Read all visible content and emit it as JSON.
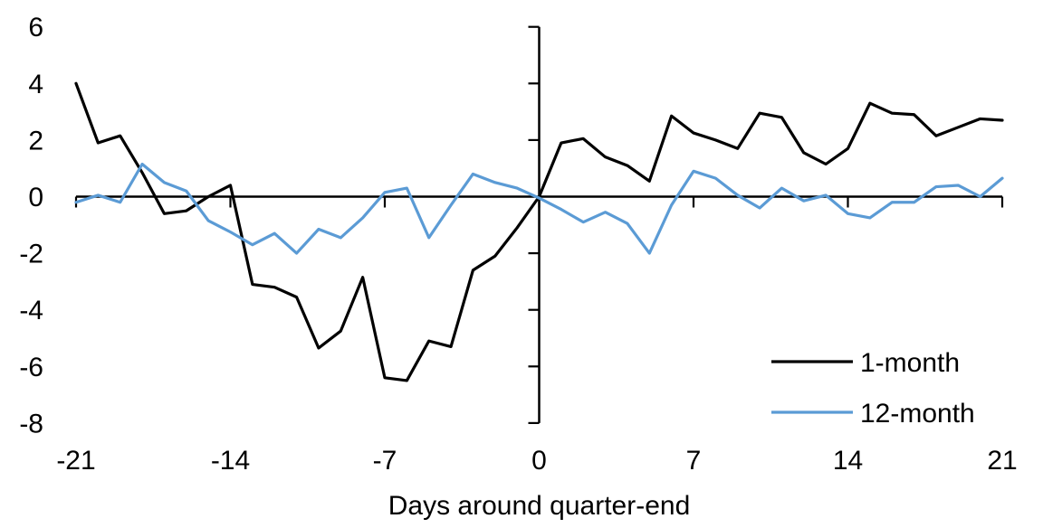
{
  "chart_data": {
    "type": "line",
    "title": "",
    "xlabel": "Days around quarter-end",
    "ylabel": "",
    "x": [
      -21,
      -20,
      -19,
      -18,
      -17,
      -16,
      -15,
      -14,
      -13,
      -12,
      -11,
      -10,
      -9,
      -8,
      -7,
      -6,
      -5,
      -4,
      -3,
      -2,
      -1,
      0,
      1,
      2,
      3,
      4,
      5,
      6,
      7,
      8,
      9,
      10,
      11,
      12,
      13,
      14,
      15,
      16,
      17,
      18,
      19,
      20,
      21
    ],
    "series": [
      {
        "name": "1-month",
        "color": "#000000",
        "values": [
          4.0,
          1.9,
          2.15,
          0.85,
          -0.6,
          -0.5,
          0.0,
          0.4,
          -3.1,
          -3.2,
          -3.55,
          -5.35,
          -4.75,
          -2.85,
          -6.4,
          -6.5,
          -5.1,
          -5.3,
          -2.6,
          -2.1,
          -1.1,
          0.0,
          1.9,
          2.05,
          1.4,
          1.1,
          0.55,
          2.85,
          2.25,
          2.0,
          1.7,
          2.95,
          2.8,
          1.55,
          1.15,
          1.7,
          3.3,
          2.95,
          2.9,
          2.15,
          2.45,
          2.75,
          2.7
        ]
      },
      {
        "name": "12-month",
        "color": "#5B9BD5",
        "values": [
          -0.2,
          0.05,
          -0.2,
          1.15,
          0.5,
          0.2,
          -0.85,
          -1.25,
          -1.7,
          -1.3,
          -2.0,
          -1.15,
          -1.45,
          -0.75,
          0.15,
          0.3,
          -1.45,
          -0.3,
          0.8,
          0.5,
          0.3,
          -0.05,
          -0.45,
          -0.9,
          -0.55,
          -0.95,
          -2.0,
          -0.3,
          0.9,
          0.65,
          0.05,
          -0.4,
          0.3,
          -0.15,
          0.05,
          -0.6,
          -0.75,
          -0.2,
          -0.2,
          0.35,
          0.4,
          0.0,
          0.65
        ]
      }
    ],
    "xlim": [
      -21,
      21
    ],
    "ylim": [
      -8,
      6
    ],
    "x_ticks": [
      -21,
      -14,
      -7,
      0,
      7,
      14,
      21
    ],
    "y_ticks": [
      6,
      4,
      2,
      0,
      -2,
      -4,
      -6,
      -8
    ],
    "grid": false,
    "legend_position": "lower-right"
  },
  "colors": {
    "axis": "#000000",
    "text": "#000000",
    "background": "#FFFFFF",
    "series_black": "#000000",
    "series_blue": "#5B9BD5"
  },
  "legend": {
    "items": [
      {
        "label": "1-month"
      },
      {
        "label": "12-month"
      }
    ]
  }
}
